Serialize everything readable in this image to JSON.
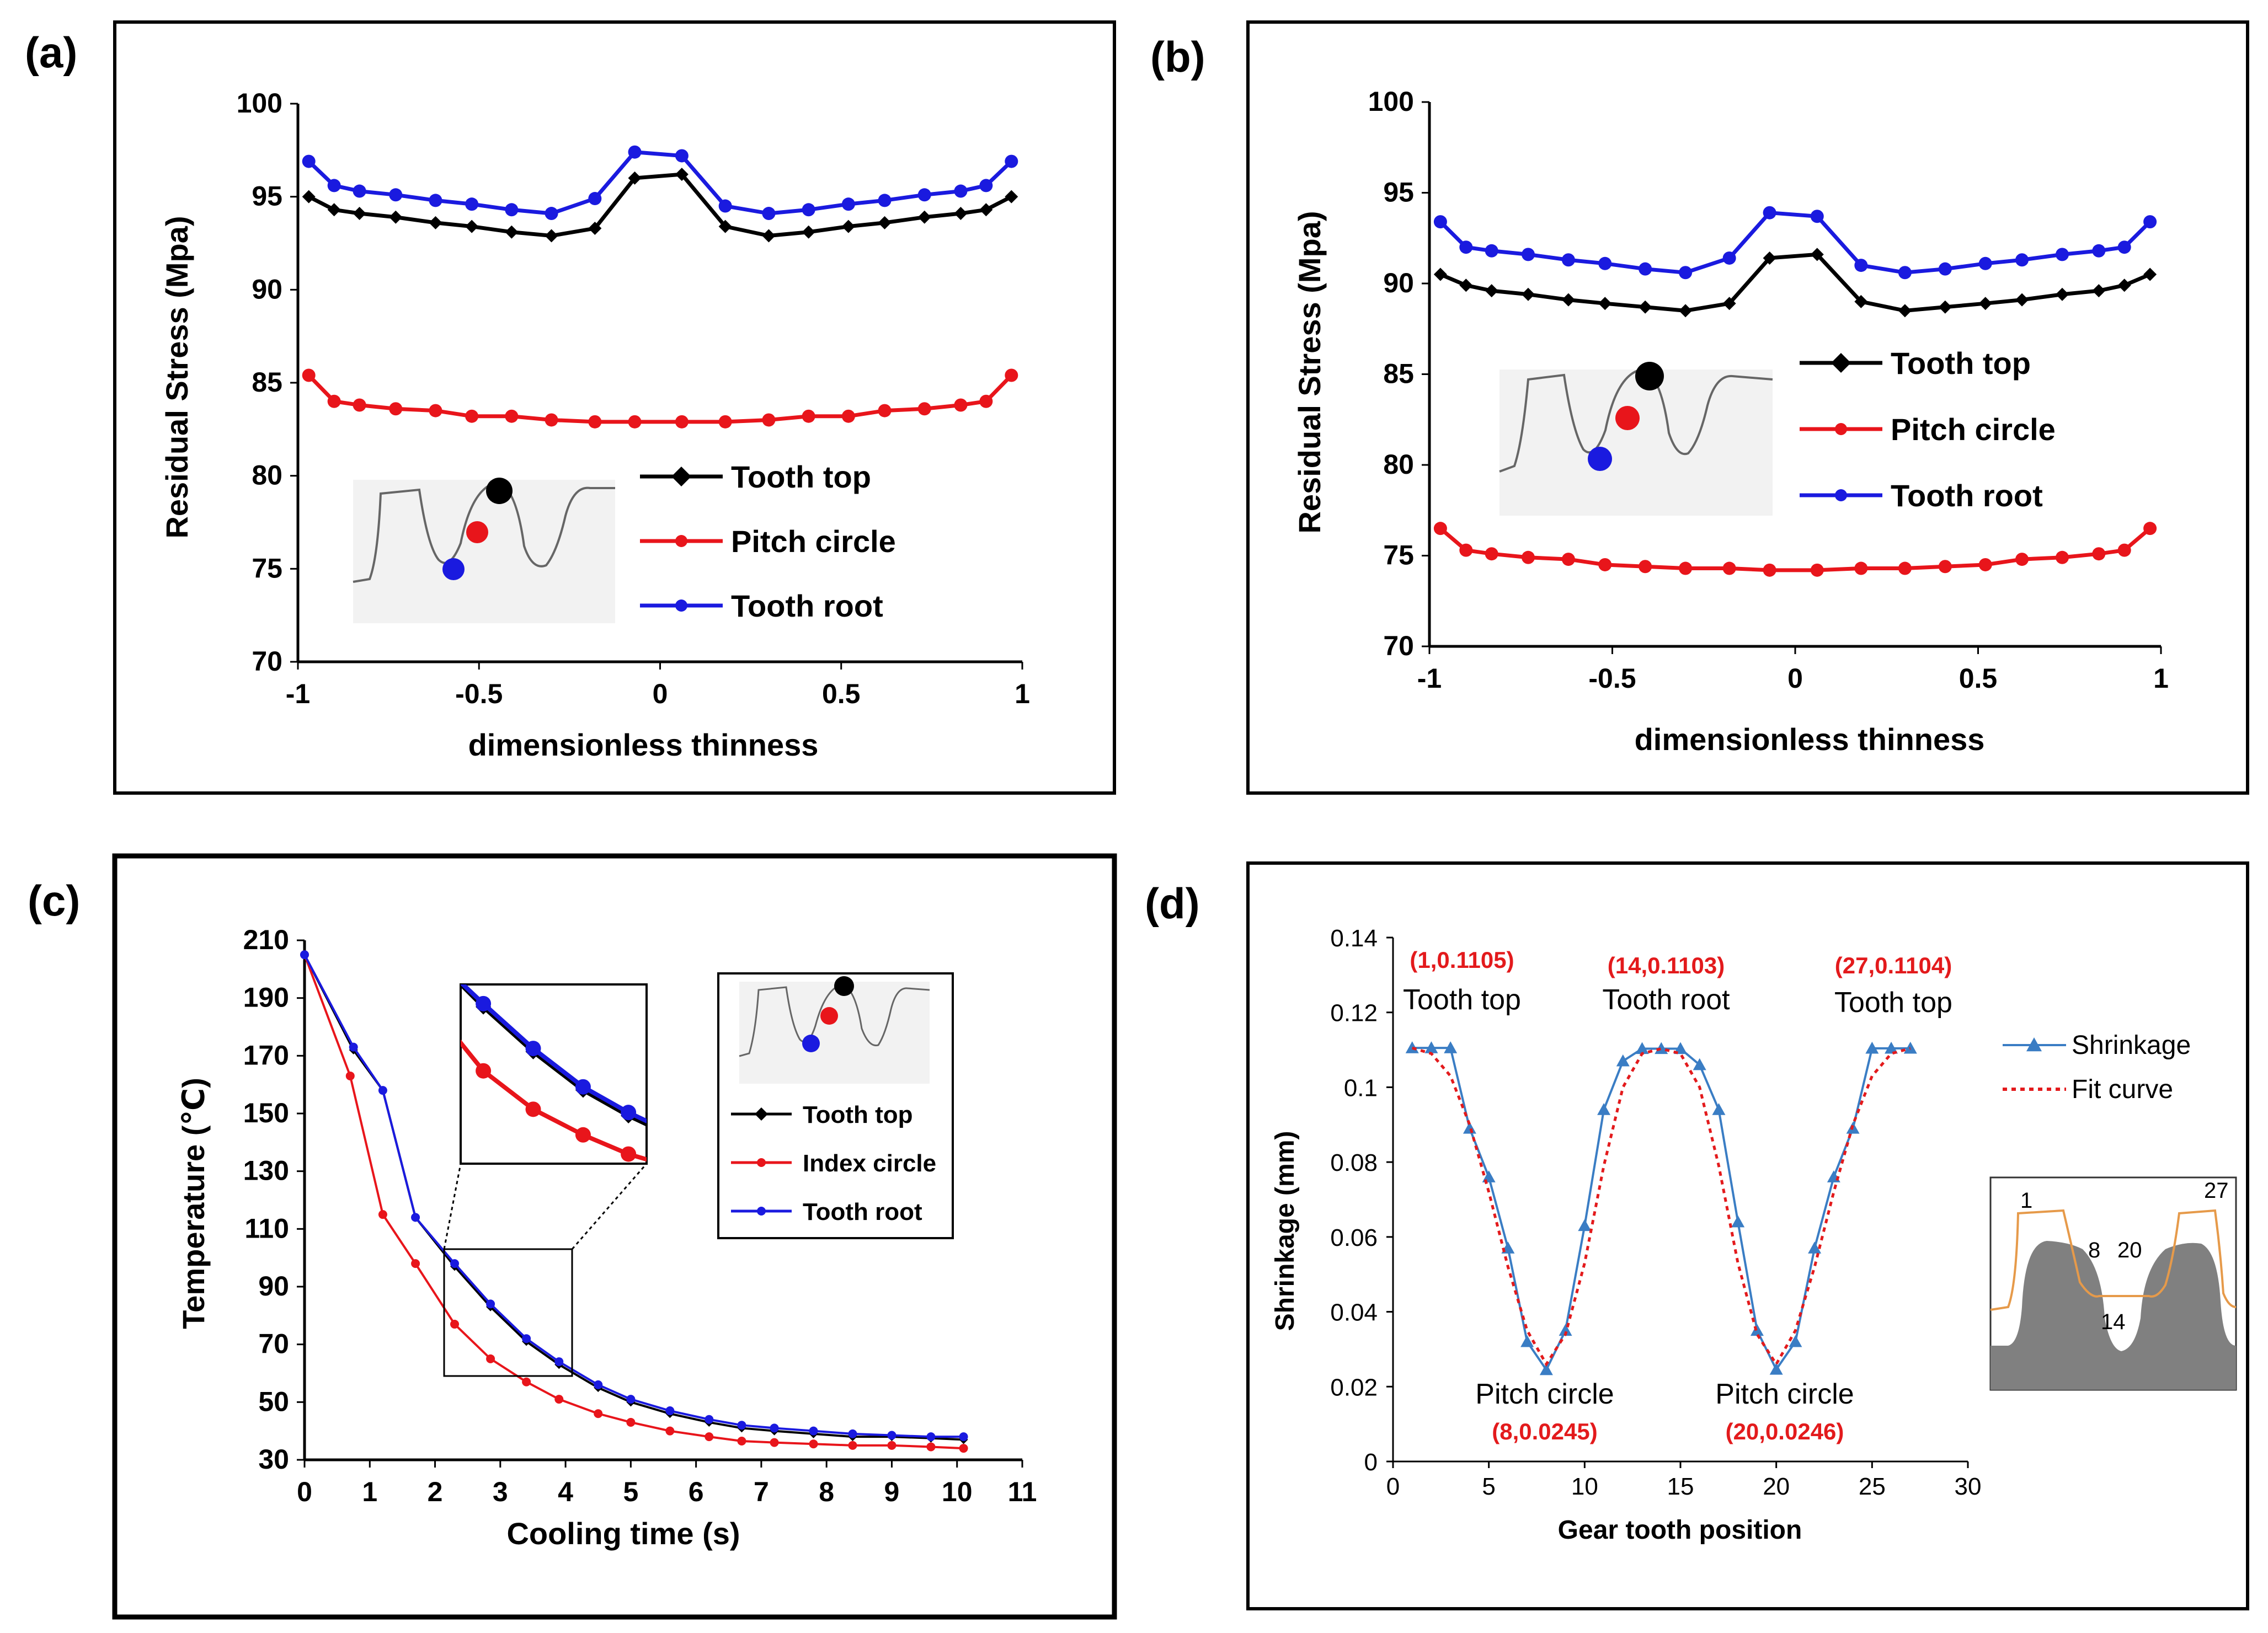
{
  "panels": {
    "a": {
      "label": "(a)"
    },
    "b": {
      "label": "(b)"
    },
    "c": {
      "label": "(c)"
    },
    "d": {
      "label": "(d)"
    }
  },
  "chart_data": [
    {
      "id": "a",
      "type": "line",
      "xlabel": "dimensionless thinness",
      "ylabel": "Residual Stress (Mpa)",
      "xlim": [
        -1,
        1
      ],
      "ylim": [
        70,
        100
      ],
      "xticks": [
        "-1",
        "-0.5",
        "0",
        "0.5",
        "1"
      ],
      "yticks": [
        "70",
        "75",
        "80",
        "85",
        "90",
        "95",
        "100"
      ],
      "x": [
        -0.97,
        -0.9,
        -0.83,
        -0.73,
        -0.62,
        -0.52,
        -0.41,
        -0.3,
        -0.18,
        -0.07,
        0.06,
        0.18,
        0.3,
        0.41,
        0.52,
        0.62,
        0.73,
        0.83,
        0.9,
        0.97
      ],
      "series": [
        {
          "name": "Tooth top",
          "color": "#000000",
          "marker": "diamond",
          "values": [
            95.0,
            94.3,
            94.1,
            93.9,
            93.6,
            93.4,
            93.1,
            92.9,
            93.3,
            96.0,
            96.2,
            93.4,
            92.9,
            93.1,
            93.4,
            93.6,
            93.9,
            94.1,
            94.3,
            95.0
          ]
        },
        {
          "name": "Pitch circle",
          "color": "#e8151b",
          "marker": "circle",
          "values": [
            85.4,
            84.0,
            83.8,
            83.6,
            83.5,
            83.2,
            83.2,
            83.0,
            82.9,
            82.9,
            82.9,
            82.9,
            83.0,
            83.2,
            83.2,
            83.5,
            83.6,
            83.8,
            84.0,
            85.4
          ]
        },
        {
          "name": "Tooth root",
          "color": "#1a1adf",
          "marker": "circle",
          "values": [
            96.9,
            95.6,
            95.3,
            95.1,
            94.8,
            94.6,
            94.3,
            94.1,
            94.9,
            97.4,
            97.2,
            94.5,
            94.1,
            94.3,
            94.6,
            94.8,
            95.1,
            95.3,
            95.6,
            96.9
          ]
        }
      ]
    },
    {
      "id": "b",
      "type": "line",
      "xlabel": "dimensionless thinness",
      "ylabel": "Residual Stress (Mpa)",
      "xlim": [
        -1,
        1
      ],
      "ylim": [
        70,
        100
      ],
      "xticks": [
        "-1",
        "-0.5",
        "0",
        "0.5",
        "1"
      ],
      "yticks": [
        "70",
        "75",
        "80",
        "85",
        "90",
        "95",
        "100"
      ],
      "x": [
        -0.97,
        -0.9,
        -0.83,
        -0.73,
        -0.62,
        -0.52,
        -0.41,
        -0.3,
        -0.18,
        -0.07,
        0.06,
        0.18,
        0.3,
        0.41,
        0.52,
        0.62,
        0.73,
        0.83,
        0.9,
        0.97
      ],
      "series": [
        {
          "name": "Tooth top",
          "color": "#000000",
          "marker": "diamond",
          "values": [
            90.5,
            89.9,
            89.6,
            89.4,
            89.1,
            88.9,
            88.7,
            88.5,
            88.9,
            91.4,
            91.6,
            89.0,
            88.5,
            88.7,
            88.9,
            89.1,
            89.4,
            89.6,
            89.9,
            90.5
          ]
        },
        {
          "name": "Pitch circle",
          "color": "#e8151b",
          "marker": "circle",
          "values": [
            76.5,
            75.3,
            75.1,
            74.9,
            74.8,
            74.5,
            74.4,
            74.3,
            74.3,
            74.2,
            74.2,
            74.3,
            74.3,
            74.4,
            74.5,
            74.8,
            74.9,
            75.1,
            75.3,
            76.5
          ]
        },
        {
          "name": "Tooth root",
          "color": "#1a1adf",
          "marker": "circle",
          "values": [
            93.4,
            92.0,
            91.8,
            91.6,
            91.3,
            91.1,
            90.8,
            90.6,
            91.4,
            93.9,
            93.7,
            91.0,
            90.6,
            90.8,
            91.1,
            91.3,
            91.6,
            91.8,
            92.0,
            93.4
          ]
        }
      ]
    },
    {
      "id": "c",
      "type": "line",
      "xlabel": "Cooling time (s)",
      "ylabel": "Temperature (℃)",
      "xlim": [
        0,
        11
      ],
      "ylim": [
        30,
        210
      ],
      "xticks": [
        "0",
        "1",
        "2",
        "3",
        "4",
        "5",
        "6",
        "7",
        "8",
        "9",
        "10",
        "11"
      ],
      "yticks": [
        "30",
        "50",
        "70",
        "90",
        "110",
        "130",
        "150",
        "170",
        "190",
        "210"
      ],
      "series": [
        {
          "name": "Tooth top",
          "color": "#000000",
          "marker": "diamond",
          "x": [
            0,
            0.75,
            1.2,
            1.7,
            2.3,
            2.85,
            3.4,
            3.9,
            4.5,
            5.0,
            5.6,
            6.2,
            6.7,
            7.2,
            7.8,
            8.4,
            9.0,
            9.6,
            10.1
          ],
          "values": [
            205,
            172,
            158,
            114,
            97,
            83,
            71,
            63,
            55,
            50,
            46,
            43,
            41,
            40,
            39,
            38,
            38,
            37.5,
            37
          ]
        },
        {
          "name": "Index circle",
          "color": "#e8151b",
          "marker": "circle",
          "x": [
            0,
            0.7,
            1.2,
            1.7,
            2.3,
            2.85,
            3.4,
            3.9,
            4.5,
            5.0,
            5.6,
            6.2,
            6.7,
            7.2,
            7.8,
            8.4,
            9.0,
            9.6,
            10.1
          ],
          "values": [
            205,
            163,
            115,
            98,
            77,
            65,
            57,
            51,
            46,
            43,
            40,
            38,
            36.5,
            36,
            35.5,
            35,
            35,
            34.5,
            34
          ]
        },
        {
          "name": "Tooth root",
          "color": "#1a1adf",
          "marker": "circle",
          "x": [
            0,
            0.75,
            1.2,
            1.7,
            2.3,
            2.85,
            3.4,
            3.9,
            4.5,
            5.0,
            5.6,
            6.2,
            6.7,
            7.2,
            7.8,
            8.4,
            9.0,
            9.6,
            10.1
          ],
          "values": [
            205,
            173,
            158,
            114,
            98,
            84,
            72,
            64,
            56,
            51,
            47,
            44,
            42,
            41,
            40,
            39,
            38.5,
            38,
            38
          ]
        }
      ],
      "inset_zoom": {
        "xlim": [
          2.05,
          4.1
        ],
        "ylim": [
          48,
          104
        ]
      }
    },
    {
      "id": "d",
      "type": "line",
      "xlabel": "Gear tooth position",
      "ylabel": "Shrinkage (mm)",
      "xlim": [
        0,
        30
      ],
      "ylim": [
        0,
        0.14
      ],
      "xticks": [
        "0",
        "5",
        "10",
        "15",
        "20",
        "25",
        "30"
      ],
      "yticks": [
        "0",
        "0.02",
        "0.04",
        "0.06",
        "0.08",
        "0.1",
        "0.12",
        "0.14"
      ],
      "series": [
        {
          "name": "Shrinkage",
          "color": "#3a7dc4",
          "marker": "triangle",
          "x": [
            1,
            2,
            3,
            4,
            5,
            6,
            7,
            8,
            9,
            10,
            11,
            12,
            13,
            14,
            15,
            16,
            17,
            18,
            19,
            20,
            21,
            22,
            23,
            24,
            25,
            26,
            27
          ],
          "values": [
            0.1105,
            0.1105,
            0.1105,
            0.089,
            0.076,
            0.057,
            0.032,
            0.0245,
            0.035,
            0.063,
            0.094,
            0.107,
            0.1103,
            0.1103,
            0.1103,
            0.106,
            0.094,
            0.064,
            0.035,
            0.0246,
            0.032,
            0.057,
            0.076,
            0.089,
            0.1104,
            0.1104,
            0.1104
          ]
        },
        {
          "name": "Fit curve",
          "color": "#e31a1c",
          "style": "dotted",
          "x": [
            1,
            2,
            3,
            4,
            5,
            6,
            7,
            8,
            9,
            10,
            11,
            12,
            13,
            14,
            15,
            16,
            17,
            18,
            19,
            20,
            21,
            22,
            23,
            24,
            25,
            26,
            27
          ],
          "values": [
            0.1105,
            0.109,
            0.103,
            0.09,
            0.072,
            0.052,
            0.035,
            0.026,
            0.034,
            0.053,
            0.079,
            0.1,
            0.109,
            0.1103,
            0.109,
            0.1,
            0.079,
            0.053,
            0.034,
            0.026,
            0.035,
            0.052,
            0.072,
            0.09,
            0.103,
            0.109,
            0.1104
          ]
        }
      ],
      "annotations": [
        {
          "coord": "(1,0.1105)",
          "label": "Tooth top"
        },
        {
          "coord": "(14,0.1103)",
          "label": "Tooth root"
        },
        {
          "coord": "(27,0.1104)",
          "label": "Tooth top"
        },
        {
          "coord": "(8,0.0245)",
          "label": "Pitch circle"
        },
        {
          "coord": "(20,0.0246)",
          "label": "Pitch circle"
        }
      ],
      "inset_numbers": [
        "1",
        "27",
        "8",
        "20",
        "14"
      ]
    }
  ]
}
